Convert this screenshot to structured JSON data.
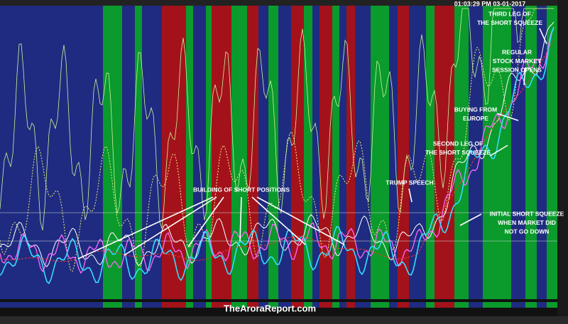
{
  "header": {
    "timestamp": "01:03:29 PM 03-01-2017"
  },
  "annotations": [
    {
      "lines": [
        "THIRD LEG OF",
        "THE SHORT SQUEEZE"
      ]
    },
    {
      "lines": [
        "REGULAR",
        "STOCK MARKET",
        "SESSION  OPENS"
      ]
    },
    {
      "lines": [
        "BUYING FROM",
        "EUROPE"
      ]
    },
    {
      "lines": [
        "SECOND LEG OF",
        "THE SHORT SQUEEZE"
      ]
    },
    {
      "lines": [
        "TRUMP SPEECH"
      ]
    },
    {
      "lines": [
        "BUILDING OF SHORT POSITIONS"
      ]
    },
    {
      "lines": [
        "INITIAL SHORT SQUEEZE",
        "WHEN MARKET DID",
        "NOT GO DOWN"
      ]
    }
  ],
  "watermark": "TheAroraReport.com"
}
